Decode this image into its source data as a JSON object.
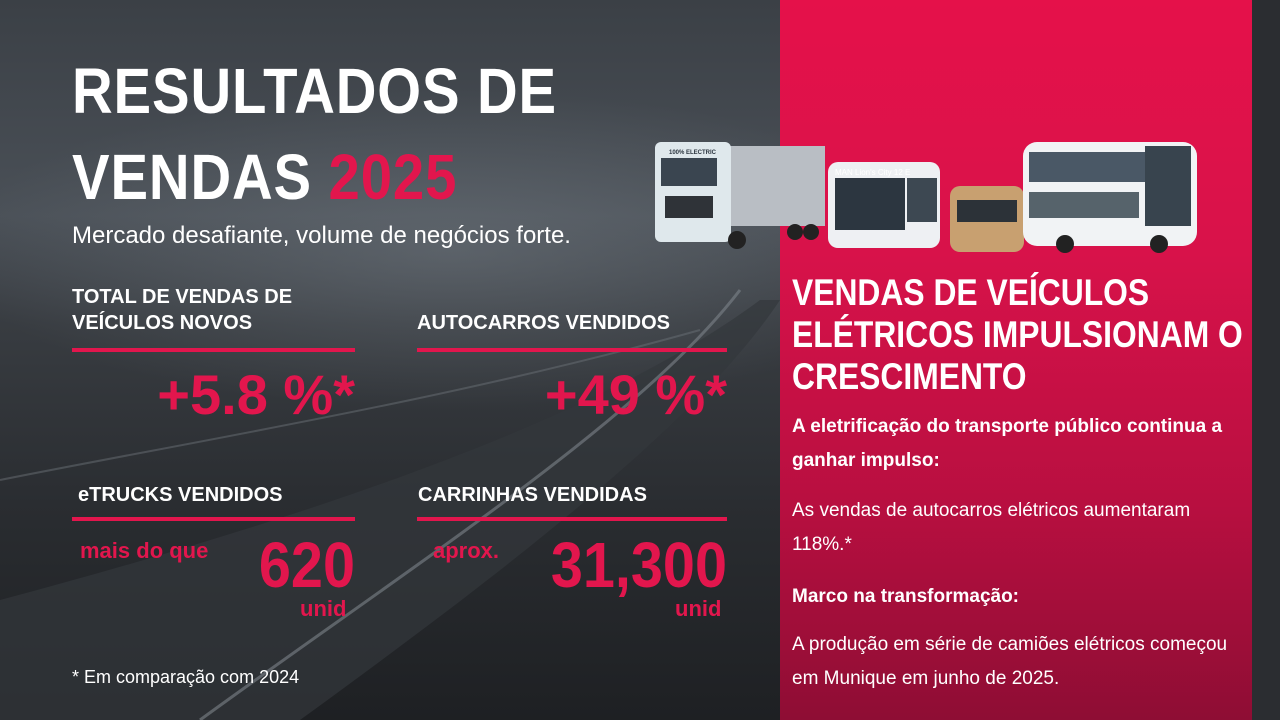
{
  "title": {
    "line1": "RESULTADOS DE",
    "line2": "VENDAS",
    "year": "2025"
  },
  "subtitle": "Mercado desafiante, volume de negócios forte.",
  "stats": [
    {
      "label_l1": "TOTAL DE VENDAS DE",
      "label_l2": "VEÍCULOS NOVOS",
      "value": "+5.8 %*"
    },
    {
      "label_l1": "AUTOCARROS VENDIDOS",
      "value": "+49 %*"
    },
    {
      "label_l1": "eTRUCKS VENDIDOS",
      "prefix": "mais do que",
      "value": "620",
      "unit": "unid"
    },
    {
      "label_l1": "CARRINHAS VENDIDAS",
      "prefix": "aprox.",
      "value": "31,300",
      "unit": "unid"
    }
  ],
  "footnote": "* Em comparação com 2024",
  "vehicles": {
    "truck_text": "100% ELECTRIC",
    "bus_sign": "MAN Lion's City 12 E",
    "brand": "MAN"
  },
  "right": {
    "heading": "VENDAS DE VEÍCULOS ELÉTRICOS IMPULSIONAM O CRESCIMENTO",
    "p1_bold": "A eletrificação do transporte público continua a ganhar impulso:",
    "p1": "As vendas de autocarros elétricos aumentaram 118%.*",
    "p2_bold": "Marco na transformação:",
    "p2": "A produção em série de camiões elétricos começou em Munique em junho de 2025."
  },
  "colors": {
    "accent": "#e2164d",
    "panel": "#d8124a"
  }
}
